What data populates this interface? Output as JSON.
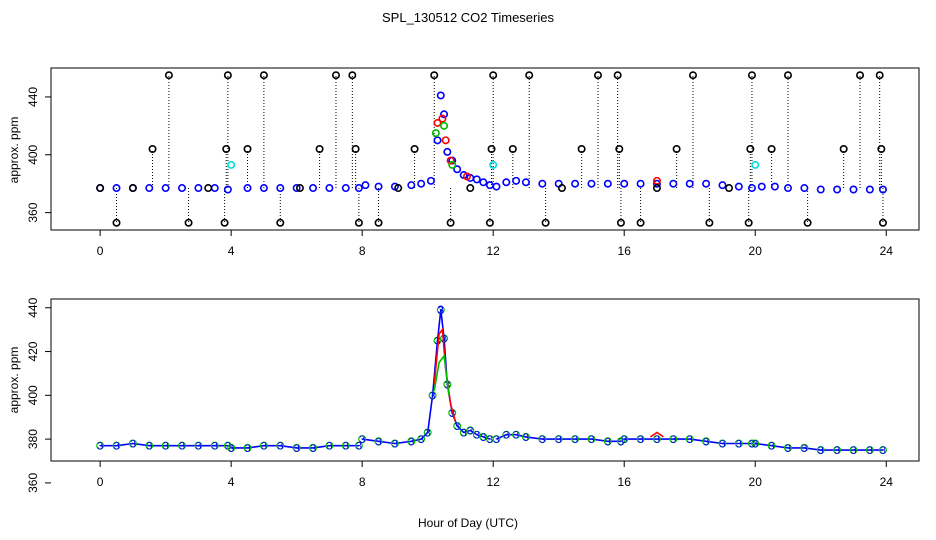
{
  "chart_data": [
    {
      "type": "scatter",
      "title": "SPL_130512  CO2 Timeseries",
      "xlabel": "",
      "ylabel": "approx. ppm",
      "xlim": [
        -1.5,
        25
      ],
      "ylim": [
        348,
        460
      ],
      "xticks": [
        "0",
        "4",
        "8",
        "12",
        "16",
        "20",
        "24"
      ],
      "yticks": [
        "360",
        "400",
        "440"
      ],
      "series": [
        {
          "name": "blue",
          "color": "#0000ff",
          "x": [
            0,
            0.5,
            1,
            1.5,
            2,
            2.5,
            3,
            3.5,
            3.9,
            4.5,
            5,
            5.5,
            6,
            6.5,
            7,
            7.5,
            7.9,
            8.1,
            8.5,
            9,
            9.5,
            9.8,
            10.1,
            10.3,
            10.4,
            10.5,
            10.6,
            10.75,
            10.9,
            11.1,
            11.3,
            11.5,
            11.7,
            11.9,
            12.1,
            12.4,
            12.7,
            13,
            13.5,
            14,
            14.5,
            15,
            15.5,
            16,
            16.5,
            17,
            17.5,
            18,
            18.5,
            19,
            19.5,
            19.9,
            20.2,
            20.6,
            21,
            21.5,
            22,
            22.5,
            23,
            23.5,
            23.9
          ],
          "y": [
            377,
            377,
            377,
            377,
            377,
            377,
            377,
            377,
            376,
            377,
            377,
            377,
            377,
            377,
            377,
            377,
            377,
            379,
            378,
            378,
            379,
            380,
            382,
            410,
            441,
            428,
            402,
            396,
            390,
            386,
            384,
            383,
            381,
            379,
            378,
            381,
            382,
            381,
            380,
            380,
            380,
            380,
            380,
            380,
            380,
            380,
            380,
            380,
            380,
            379,
            378,
            377,
            378,
            378,
            377,
            377,
            376,
            376,
            376,
            376,
            376
          ]
        },
        {
          "name": "red",
          "color": "#ff0000",
          "x": [
            10.3,
            10.45,
            10.55,
            10.7,
            11.2,
            17
          ],
          "y": [
            422,
            425,
            410,
            396,
            385,
            382
          ]
        },
        {
          "name": "green",
          "color": "#00bb00",
          "x": [
            10.25,
            10.5,
            10.75
          ],
          "y": [
            415,
            420,
            393
          ]
        },
        {
          "name": "cyan",
          "color": "#00dddd",
          "x": [
            4,
            12,
            20
          ],
          "y": [
            393,
            393,
            393
          ]
        },
        {
          "name": "black",
          "color": "#000000",
          "x": [
            0,
            0.5,
            1,
            1.6,
            2.1,
            2.7,
            3.3,
            3.8,
            3.85,
            3.9,
            4.5,
            5,
            5.5,
            6.1,
            6.7,
            7.2,
            7.7,
            7.8,
            7.9,
            8.5,
            9.1,
            9.6,
            10.2,
            10.7,
            11.3,
            11.9,
            11.95,
            12,
            12.6,
            13.1,
            13.6,
            14.1,
            14.7,
            15.2,
            15.8,
            15.85,
            15.9,
            16.5,
            17,
            17.6,
            18.1,
            18.6,
            19.2,
            19.8,
            19.85,
            19.9,
            20.5,
            21,
            21.6,
            22.7,
            23.2,
            23.8,
            23.85,
            23.9
          ],
          "y": [
            377,
            353,
            377,
            404,
            455,
            353,
            377,
            353,
            404,
            455,
            404,
            455,
            353,
            377,
            404,
            455,
            455,
            404,
            353,
            353,
            377,
            404,
            455,
            353,
            377,
            353,
            404,
            455,
            404,
            455,
            353,
            377,
            404,
            455,
            455,
            404,
            353,
            353,
            377,
            404,
            455,
            353,
            377,
            353,
            404,
            455,
            404,
            455,
            353,
            404,
            455,
            455,
            404,
            353
          ]
        }
      ]
    },
    {
      "type": "line",
      "title": "",
      "xlabel": "Hour of Day (UTC)",
      "ylabel": "approx. ppm",
      "xlim": [
        -1.5,
        25
      ],
      "ylim": [
        370,
        444
      ],
      "xticks": [
        "0",
        "4",
        "8",
        "12",
        "16",
        "20",
        "24"
      ],
      "yticks": [
        "360",
        "380",
        "400",
        "420",
        "440"
      ],
      "point_label": "3",
      "peak_label": "3",
      "peak": {
        "x": 10.4,
        "y": 439
      },
      "series": [
        {
          "name": "blue",
          "color": "#0000ff",
          "segments": [
            {
              "x": [
                0,
                0.5,
                1,
                1.5,
                2,
                2.5,
                3,
                3.5,
                3.9
              ],
              "y": [
                377,
                377,
                378,
                377,
                377,
                377,
                377,
                377,
                377
              ]
            },
            {
              "x": [
                4,
                4.5,
                5,
                5.5,
                6,
                6.5,
                7,
                7.5,
                7.9
              ],
              "y": [
                376,
                376,
                377,
                377,
                376,
                376,
                377,
                377,
                377
              ]
            },
            {
              "x": [
                8,
                8.5,
                9,
                9.5,
                9.8,
                10,
                10.15,
                10.3,
                10.4,
                10.5,
                10.6,
                10.75,
                10.9,
                11.1,
                11.3,
                11.5,
                11.7,
                11.9
              ],
              "y": [
                380,
                379,
                378,
                379,
                380,
                383,
                400,
                425,
                439,
                426,
                405,
                392,
                386,
                383,
                384,
                382,
                381,
                380
              ]
            },
            {
              "x": [
                12.1,
                12.4,
                12.7,
                13,
                13.5,
                14,
                14.5,
                15,
                15.5,
                15.9
              ],
              "y": [
                380,
                382,
                382,
                381,
                380,
                380,
                380,
                380,
                379,
                379
              ]
            },
            {
              "x": [
                16,
                16.5,
                17,
                17.5,
                18,
                18.5,
                19,
                19.5,
                19.9
              ],
              "y": [
                380,
                380,
                380,
                380,
                380,
                379,
                378,
                378,
                378
              ]
            },
            {
              "x": [
                20,
                20.5,
                21,
                21.5,
                22,
                22.5,
                23,
                23.5,
                23.9
              ],
              "y": [
                378,
                377,
                376,
                376,
                375,
                375,
                375,
                375,
                375
              ]
            }
          ]
        },
        {
          "name": "red",
          "color": "#ff0000",
          "segments": [
            {
              "x": [
                10.2,
                10.35,
                10.45,
                10.55,
                10.7,
                10.85
              ],
              "y": [
                405,
                428,
                430,
                412,
                396,
                388
              ]
            },
            {
              "x": [
                16.8,
                17,
                17.2
              ],
              "y": [
                381,
                383,
                381
              ]
            }
          ]
        },
        {
          "name": "green",
          "color": "#00bb00",
          "segments": [
            {
              "x": [
                10.2,
                10.35,
                10.5,
                10.65
              ],
              "y": [
                402,
                415,
                418,
                400
              ]
            }
          ]
        }
      ]
    }
  ]
}
